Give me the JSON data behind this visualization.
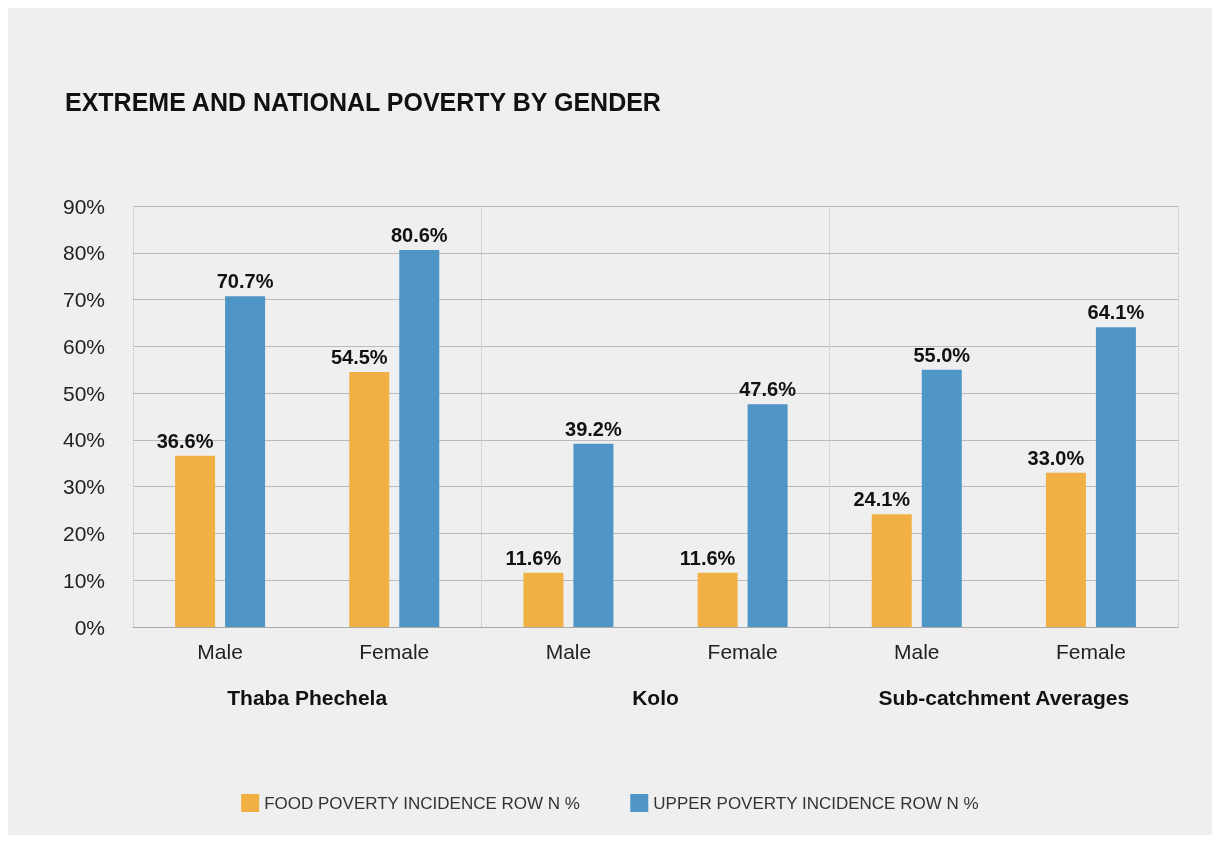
{
  "chart_data": {
    "type": "bar",
    "title": "EXTREME AND NATIONAL POVERTY BY GENDER",
    "categories": [
      "Male",
      "Female",
      "Male",
      "Female",
      "Male",
      "Female"
    ],
    "annotations": [
      "Thaba Phechela",
      "Kolo",
      "Sub-catchment Averages"
    ],
    "series": [
      {
        "name": "FOOD POVERTY INCIDENCE ROW N %",
        "color": "#f0b044",
        "values": [
          36.6,
          54.5,
          11.6,
          11.6,
          24.1,
          33.0
        ],
        "value_labels": [
          "36.6%",
          "54.5%",
          "11.6%",
          "11.6%",
          "24.1%",
          "33.0%"
        ]
      },
      {
        "name": "UPPER POVERTY INCIDENCE ROW N %",
        "color": "#4f95c6",
        "values": [
          70.7,
          80.6,
          39.2,
          47.6,
          55.0,
          64.1
        ],
        "value_labels": [
          "70.7%",
          "80.6%",
          "39.2%",
          "47.6%",
          "55.0%",
          "64.1%"
        ]
      }
    ],
    "ylim": [
      0,
      90
    ],
    "yticks": [
      {
        "value": 0,
        "label": "0%"
      },
      {
        "value": 10,
        "label": "10%"
      },
      {
        "value": 20,
        "label": "20%"
      },
      {
        "value": 30,
        "label": "30%"
      },
      {
        "value": 40,
        "label": "40%"
      },
      {
        "value": 50,
        "label": "50%"
      },
      {
        "value": 60,
        "label": "60%"
      },
      {
        "value": 70,
        "label": "70%"
      },
      {
        "value": 80,
        "label": "80%"
      },
      {
        "value": 90,
        "label": "90%"
      }
    ],
    "grid": "y",
    "legend": "bottom"
  }
}
